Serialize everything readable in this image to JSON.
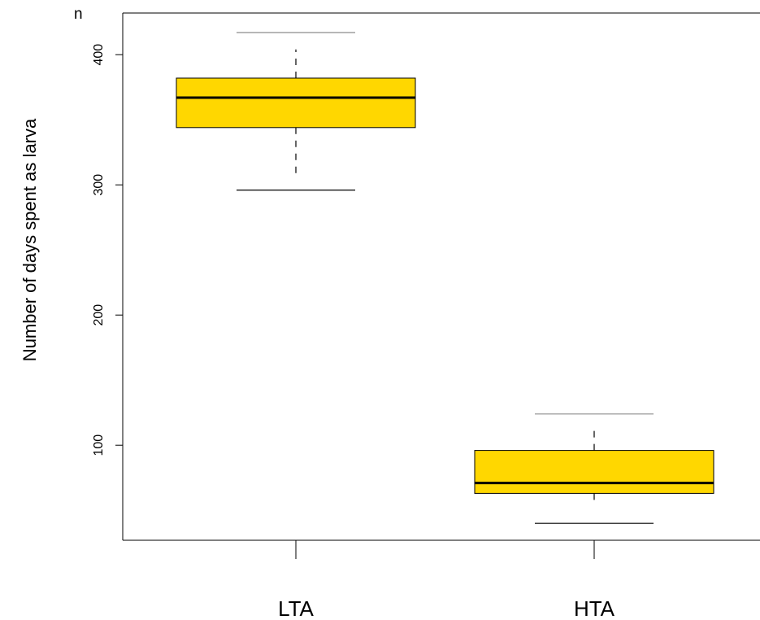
{
  "chart_data": {
    "type": "box",
    "title": "",
    "corner_text": "n",
    "xlabel": "",
    "ylabel": "Number of days spent as larva",
    "categories": [
      "LTA",
      "HTA"
    ],
    "y_ticks": [
      100,
      200,
      300,
      400
    ],
    "ylim": [
      27,
      432
    ],
    "grid": false,
    "legend": "none",
    "box_color": "#FFD700",
    "boxes": [
      {
        "name": "LTA",
        "lower_whisker": 296,
        "q1": 344,
        "median": 367,
        "q3": 382,
        "upper_whisker": 417,
        "dash_low": 309,
        "dash_high": 404
      },
      {
        "name": "HTA",
        "lower_whisker": 40,
        "q1": 63,
        "median": 71,
        "q3": 96,
        "upper_whisker": 124,
        "dash_low": 53,
        "dash_high": 111
      }
    ]
  }
}
